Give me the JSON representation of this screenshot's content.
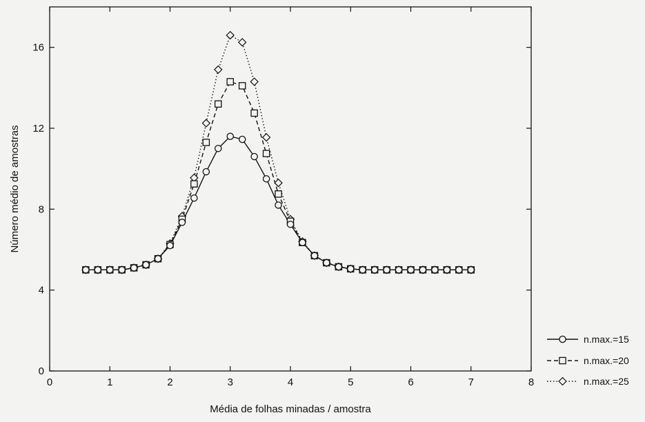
{
  "chart_data": {
    "type": "line",
    "title": "",
    "xlabel": "Média de folhas minadas / amostra",
    "ylabel": "Número médio de amostras",
    "xlim": [
      0,
      8
    ],
    "ylim": [
      0,
      18
    ],
    "xticks": [
      0,
      1,
      2,
      3,
      4,
      5,
      6,
      7,
      8
    ],
    "yticks": [
      0,
      4,
      8,
      12,
      16
    ],
    "grid": false,
    "legend_position": "bottom-right",
    "x": [
      0.6,
      0.8,
      1.0,
      1.2,
      1.4,
      1.6,
      1.8,
      2.0,
      2.2,
      2.4,
      2.6,
      2.8,
      3.0,
      3.2,
      3.4,
      3.6,
      3.8,
      4.0,
      4.2,
      4.4,
      4.6,
      4.8,
      5.0,
      5.2,
      5.4,
      5.6,
      5.8,
      6.0,
      6.2,
      6.4,
      6.6,
      6.8,
      7.0
    ],
    "series": [
      {
        "name": "n.max.=15",
        "marker": "circle",
        "dash": "solid",
        "values": [
          5.0,
          5.0,
          5.0,
          5.0,
          5.1,
          5.25,
          5.55,
          6.2,
          7.35,
          8.55,
          9.85,
          11.0,
          11.6,
          11.45,
          10.6,
          9.5,
          8.2,
          7.25,
          6.35,
          5.7,
          5.35,
          5.15,
          5.05,
          5.0,
          5.0,
          5.0,
          5.0,
          5.0,
          5.0,
          5.0,
          5.0,
          5.0,
          5.0
        ]
      },
      {
        "name": "n.max.=20",
        "marker": "square",
        "dash": "dashed",
        "values": [
          5.0,
          5.0,
          5.0,
          5.0,
          5.1,
          5.25,
          5.55,
          6.25,
          7.5,
          9.25,
          11.3,
          13.2,
          14.3,
          14.1,
          12.75,
          10.75,
          8.75,
          7.4,
          6.35,
          5.7,
          5.35,
          5.15,
          5.05,
          5.0,
          5.0,
          5.0,
          5.0,
          5.0,
          5.0,
          5.0,
          5.0,
          5.0,
          5.0
        ]
      },
      {
        "name": "n.max.=25",
        "marker": "diamond",
        "dash": "dotted",
        "values": [
          5.0,
          5.0,
          5.0,
          5.0,
          5.1,
          5.25,
          5.55,
          6.3,
          7.65,
          9.55,
          12.25,
          14.9,
          16.6,
          16.25,
          14.3,
          11.55,
          9.3,
          7.5,
          6.4,
          5.7,
          5.35,
          5.15,
          5.05,
          5.0,
          5.0,
          5.0,
          5.0,
          5.0,
          5.0,
          5.0,
          5.0,
          5.0,
          5.0
        ]
      }
    ]
  },
  "colors": {
    "background": "#f3f3f1",
    "ink": "#111111",
    "marker_fill": "#f3f3f1"
  }
}
